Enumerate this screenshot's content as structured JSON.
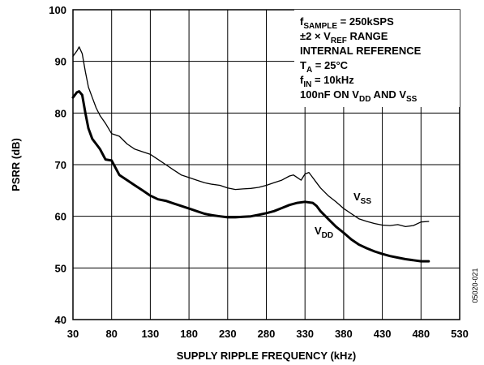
{
  "chart_data": {
    "type": "line",
    "title": "",
    "xlabel": "SUPPLY RIPPLE FREQUENCY (kHz)",
    "ylabel": "PSRR (dB)",
    "xlim": [
      30,
      530
    ],
    "ylim": [
      40,
      100
    ],
    "x_ticks": [
      "30",
      "80",
      "130",
      "180",
      "230",
      "280",
      "330",
      "380",
      "430",
      "480",
      "530"
    ],
    "y_ticks": [
      "40",
      "50",
      "60",
      "70",
      "80",
      "90",
      "100"
    ],
    "grid": true,
    "series": [
      {
        "name": "VSS",
        "label_main": "V",
        "label_sub": "SS",
        "color": "#000000",
        "line": "thin",
        "x": [
          30,
          35,
          38,
          42,
          46,
          50,
          55,
          60,
          65,
          72,
          80,
          90,
          100,
          110,
          120,
          130,
          140,
          150,
          160,
          170,
          180,
          190,
          200,
          210,
          220,
          230,
          240,
          250,
          260,
          270,
          280,
          290,
          300,
          310,
          315,
          320,
          325,
          330,
          335,
          340,
          345,
          350,
          360,
          370,
          380,
          390,
          400,
          410,
          420,
          430,
          440,
          450,
          460,
          470,
          480,
          490
        ],
        "y": [
          91,
          92,
          92.8,
          91.5,
          88,
          85,
          83,
          81,
          79.5,
          78,
          76,
          75.5,
          74,
          73,
          72.5,
          72,
          71,
          70,
          69,
          68,
          67.5,
          67,
          66.5,
          66.2,
          66,
          65.5,
          65.2,
          65.3,
          65.4,
          65.6,
          66,
          66.5,
          67,
          67.8,
          68,
          67.5,
          67,
          68.2,
          68.5,
          67.5,
          66.5,
          65.5,
          64,
          62.8,
          61.5,
          60.5,
          59.5,
          59,
          58.6,
          58.3,
          58.2,
          58.4,
          58,
          58.2,
          58.9,
          59
        ]
      },
      {
        "name": "VDD",
        "label_main": "V",
        "label_sub": "DD",
        "color": "#000000",
        "line": "thick",
        "x": [
          30,
          35,
          38,
          42,
          46,
          50,
          55,
          60,
          65,
          72,
          80,
          90,
          100,
          110,
          120,
          130,
          140,
          150,
          160,
          170,
          180,
          190,
          200,
          210,
          220,
          230,
          240,
          250,
          260,
          270,
          280,
          290,
          300,
          310,
          320,
          330,
          340,
          345,
          350,
          360,
          370,
          380,
          390,
          400,
          410,
          420,
          430,
          440,
          450,
          460,
          470,
          480,
          490
        ],
        "y": [
          83,
          84,
          84.2,
          83.5,
          80,
          77,
          75,
          74,
          73,
          71,
          70.8,
          68,
          67,
          66,
          65,
          64,
          63.3,
          63,
          62.5,
          62,
          61.5,
          61,
          60.5,
          60.2,
          60,
          59.8,
          59.8,
          59.9,
          60,
          60.3,
          60.6,
          61,
          61.6,
          62.2,
          62.6,
          62.8,
          62.6,
          62,
          61,
          59.5,
          58,
          56.8,
          55.5,
          54.5,
          53.8,
          53.2,
          52.7,
          52.3,
          52,
          51.7,
          51.5,
          51.3,
          51.3
        ]
      }
    ],
    "annotations": [
      {
        "parts": [
          [
            "f",
            ""
          ],
          [
            "SAMPLE",
            "sub"
          ],
          [
            " = 250kSPS",
            ""
          ]
        ]
      },
      {
        "parts": [
          [
            "±2 × V",
            ""
          ],
          [
            "REF",
            "sub"
          ],
          [
            " RANGE",
            ""
          ]
        ]
      },
      {
        "parts": [
          [
            "INTERNAL REFERENCE",
            ""
          ]
        ]
      },
      {
        "parts": [
          [
            "T",
            ""
          ],
          [
            "A",
            "sub"
          ],
          [
            " = 25°C",
            ""
          ]
        ]
      },
      {
        "parts": [
          [
            "f",
            ""
          ],
          [
            "IN",
            "sub"
          ],
          [
            " = 10kHz",
            ""
          ]
        ]
      },
      {
        "parts": [
          [
            "100nF ON V",
            ""
          ],
          [
            "DD",
            "sub"
          ],
          [
            " AND V",
            ""
          ],
          [
            "SS",
            "sub"
          ]
        ]
      }
    ],
    "figure_id": "05020-021"
  }
}
